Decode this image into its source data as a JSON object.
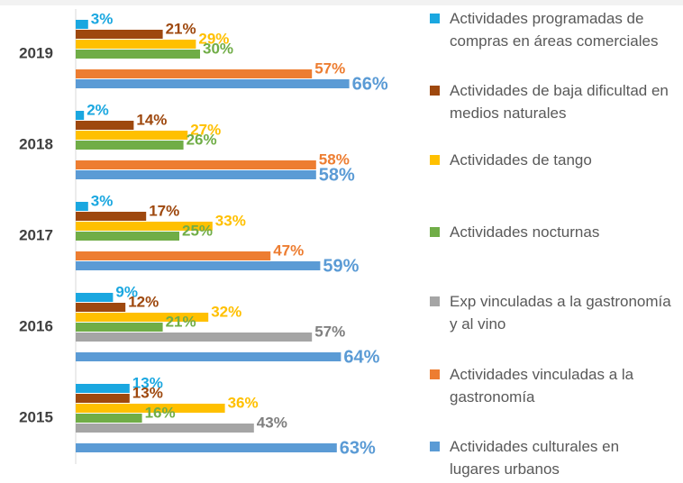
{
  "chart_data": {
    "type": "hbar",
    "categories": [
      "2019",
      "2018",
      "2017",
      "2016",
      "2015"
    ],
    "xlim": [
      0,
      100
    ],
    "series": [
      {
        "name": "Actividades programadas de compras en áreas comerciales",
        "color": "#1aa7e0",
        "values": [
          3,
          2,
          3,
          9,
          13
        ],
        "value_labels": [
          "3%",
          "2%",
          "3%",
          "9%",
          "13%"
        ]
      },
      {
        "name": "Actividades de baja dificultad en medios naturales",
        "color": "#9e480e",
        "values": [
          21,
          14,
          17,
          12,
          13
        ],
        "value_labels": [
          "21%",
          "14%",
          "17%",
          "12%",
          "13%"
        ]
      },
      {
        "name": "Actividades de tango",
        "color": "#ffc000",
        "values": [
          29,
          27,
          33,
          32,
          36
        ],
        "value_labels": [
          "29%",
          "27%",
          "33%",
          "32%",
          "36%"
        ]
      },
      {
        "name": "Actividades nocturnas",
        "color": "#70ad47",
        "values": [
          30,
          26,
          25,
          21,
          16
        ],
        "value_labels": [
          "30%",
          "26%",
          "25%",
          "21%",
          "16%"
        ]
      },
      {
        "name": "Exp vinculadas a la gastronomía y al vino",
        "color": "#a5a5a5",
        "values": [
          null,
          null,
          null,
          57,
          43
        ],
        "value_labels": [
          null,
          null,
          null,
          "57%",
          "43%"
        ]
      },
      {
        "name": "Actividades vinculadas a la gastronomía",
        "color": "#ed7d31",
        "values": [
          57,
          58,
          47,
          null,
          null
        ],
        "value_labels": [
          "57%",
          "58%",
          "47%",
          null,
          null
        ]
      },
      {
        "name": "Actividades culturales en lugares urbanos",
        "color": "#5b9bd5",
        "values": [
          66,
          58,
          59,
          64,
          63
        ],
        "value_labels": [
          "66%",
          "58%",
          "59%",
          "64%",
          "63%"
        ]
      }
    ]
  }
}
